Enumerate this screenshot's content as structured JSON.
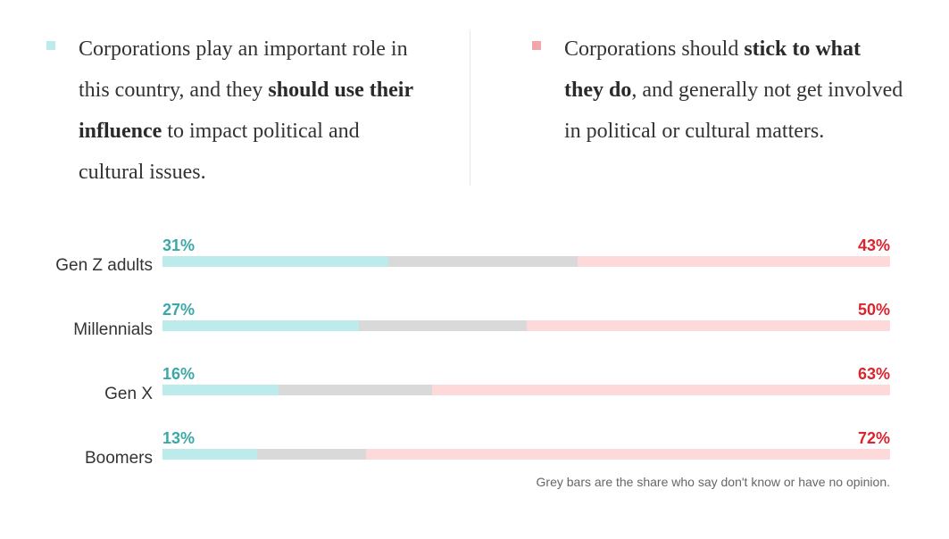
{
  "legend": {
    "use": {
      "color": "#bdebeb",
      "parts": [
        {
          "text": "Corporations play an important role in this country, and they ",
          "bold": false
        },
        {
          "text": "should use their influence",
          "bold": true
        },
        {
          "text": " to impact political and cultural issues.",
          "bold": false
        }
      ]
    },
    "stick": {
      "color": "#f2a6aa",
      "parts": [
        {
          "text": "Corporations should ",
          "bold": false
        },
        {
          "text": "stick to what they do",
          "bold": true
        },
        {
          "text": ", and generally not get involved in political or cultural matters.",
          "bold": false
        }
      ]
    }
  },
  "colors": {
    "use_bar": "#bdebeb",
    "neutral_bar": "#d9d9d9",
    "stick_bar": "#fdd9da",
    "use_text": "#3aa8a6",
    "stick_text": "#d8252f"
  },
  "chart_data": {
    "type": "bar",
    "stacked": true,
    "orientation": "horizontal",
    "categories": [
      "Gen Z adults",
      "Millennials",
      "Gen X",
      "Boomers"
    ],
    "series": [
      {
        "values": [
          31,
          27,
          16,
          13
        ],
        "labels": [
          "31%",
          "27%",
          "16%",
          "13%"
        ]
      },
      {
        "values": [
          26,
          23,
          21,
          15
        ]
      },
      {
        "values": [
          43,
          50,
          63,
          72
        ],
        "labels": [
          "43%",
          "50%",
          "63%",
          "72%"
        ]
      }
    ],
    "xlim": [
      0,
      100
    ]
  },
  "note": "Grey bars are the share who say don't know or have no opinion."
}
